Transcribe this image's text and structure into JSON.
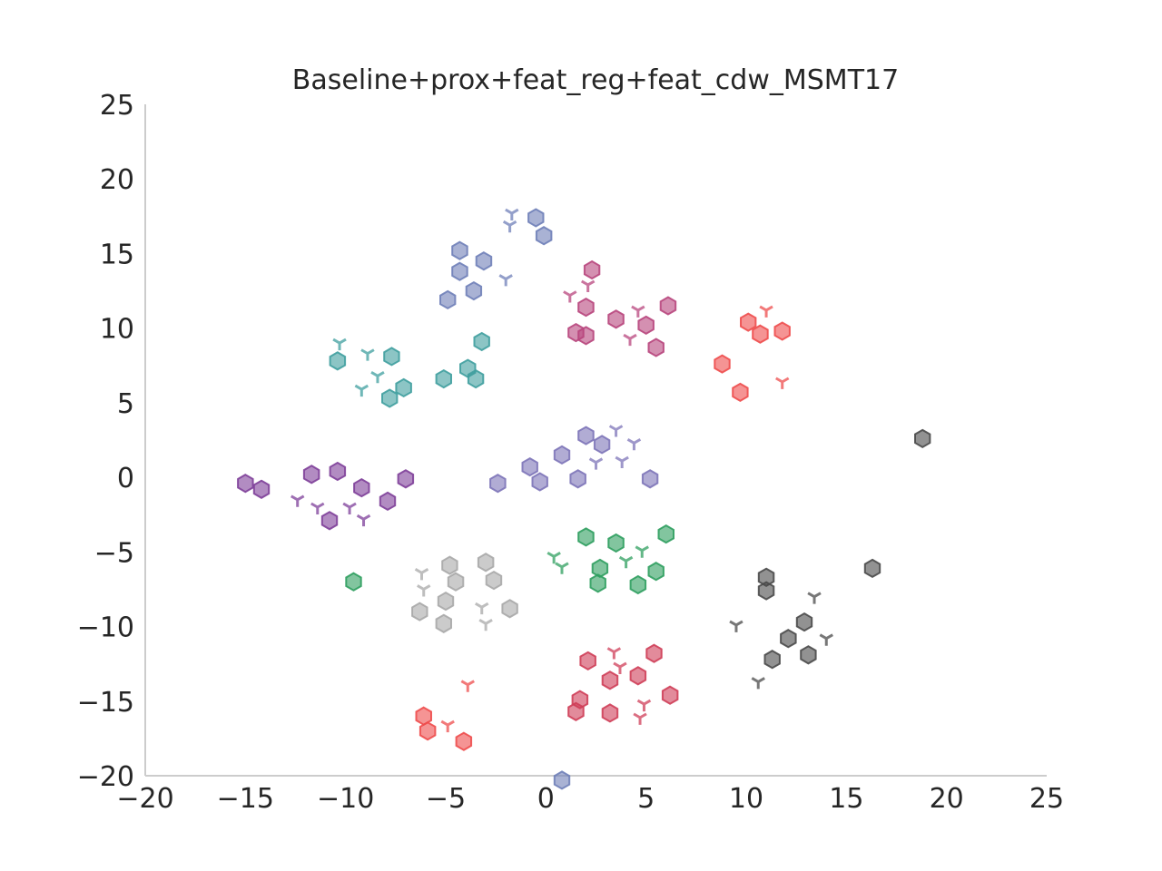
{
  "chart_data": {
    "type": "scatter",
    "title": "Baseline+prox+feat_reg+feat_cdw_MSMT17",
    "xlabel": "",
    "ylabel": "",
    "xlim": [
      -20,
      25
    ],
    "ylim": [
      -20,
      25
    ],
    "xticks": [
      -20,
      -15,
      -10,
      -5,
      0,
      5,
      10,
      15,
      20,
      25
    ],
    "yticks": [
      -20,
      -15,
      -10,
      -5,
      0,
      5,
      10,
      15,
      20,
      25
    ],
    "xtick_labels": [
      "−20",
      "−15",
      "−10",
      "−5",
      "0",
      "5",
      "10",
      "15",
      "20",
      "25"
    ],
    "ytick_labels": [
      "−20",
      "−15",
      "−10",
      "−5",
      "0",
      "5",
      "10",
      "15",
      "20",
      "25"
    ],
    "grid": false,
    "marker_legend": {
      "hexagon": "filled hexagon marker",
      "tri_down": "tri-down (Y) marker"
    },
    "clusters": [
      {
        "color": "#6f7fb8",
        "hex": [
          [
            -0.5,
            17.4
          ],
          [
            -0.1,
            16.2
          ],
          [
            -4.3,
            15.2
          ],
          [
            -3.1,
            14.5
          ],
          [
            -4.3,
            13.8
          ],
          [
            -3.6,
            12.5
          ],
          [
            -4.9,
            11.9
          ],
          [
            0.8,
            -20.3
          ]
        ],
        "tri": [
          [
            -1.7,
            17.7
          ],
          [
            -1.8,
            16.9
          ],
          [
            -2.0,
            13.3
          ]
        ]
      },
      {
        "color": "#b8467d",
        "hex": [
          [
            2.3,
            13.9
          ],
          [
            2.0,
            11.4
          ],
          [
            3.5,
            10.6
          ],
          [
            5.0,
            10.2
          ],
          [
            6.1,
            11.5
          ],
          [
            1.5,
            9.7
          ],
          [
            2.0,
            9.5
          ],
          [
            5.5,
            8.7
          ]
        ],
        "tri": [
          [
            1.2,
            12.2
          ],
          [
            2.1,
            12.9
          ],
          [
            4.6,
            11.2
          ],
          [
            4.2,
            9.3
          ]
        ]
      },
      {
        "color": "#ee4c4c",
        "hex": [
          [
            10.1,
            10.4
          ],
          [
            10.7,
            9.6
          ],
          [
            11.8,
            9.8
          ],
          [
            8.8,
            7.6
          ],
          [
            9.7,
            5.7
          ]
        ],
        "tri": [
          [
            11.0,
            11.2
          ],
          [
            11.8,
            6.4
          ]
        ]
      },
      {
        "color": "#3f9f9f",
        "hex": [
          [
            -10.4,
            7.8
          ],
          [
            -7.7,
            8.1
          ],
          [
            -3.2,
            9.1
          ],
          [
            -3.9,
            7.3
          ],
          [
            -5.1,
            6.6
          ],
          [
            -3.5,
            6.6
          ],
          [
            -7.1,
            6.0
          ],
          [
            -7.8,
            5.3
          ]
        ],
        "tri": [
          [
            -10.3,
            9.0
          ],
          [
            -8.9,
            8.3
          ],
          [
            -8.4,
            6.8
          ],
          [
            -9.2,
            5.9
          ]
        ]
      },
      {
        "color": "#7d74b8",
        "hex": [
          [
            2.0,
            2.8
          ],
          [
            2.8,
            2.2
          ],
          [
            0.8,
            1.5
          ],
          [
            -0.8,
            0.7
          ],
          [
            -0.3,
            -0.3
          ],
          [
            -2.4,
            -0.4
          ],
          [
            1.6,
            -0.1
          ],
          [
            5.2,
            -0.1
          ]
        ],
        "tri": [
          [
            3.5,
            3.2
          ],
          [
            4.4,
            2.3
          ],
          [
            2.5,
            1.0
          ],
          [
            3.8,
            1.1
          ]
        ]
      },
      {
        "color": "#7e3f99",
        "hex": [
          [
            -15.0,
            -0.4
          ],
          [
            -14.2,
            -0.8
          ],
          [
            -11.7,
            0.2
          ],
          [
            -10.4,
            0.4
          ],
          [
            -9.2,
            -0.7
          ],
          [
            -7.0,
            -0.1
          ],
          [
            -7.9,
            -1.6
          ],
          [
            -10.8,
            -2.9
          ]
        ],
        "tri": [
          [
            -12.4,
            -1.5
          ],
          [
            -11.4,
            -2.0
          ],
          [
            -9.8,
            -2.0
          ],
          [
            -9.1,
            -2.8
          ]
        ]
      },
      {
        "color": "#2f9f5f",
        "hex": [
          [
            2.0,
            -4.0
          ],
          [
            3.5,
            -4.4
          ],
          [
            6.0,
            -3.8
          ],
          [
            2.7,
            -6.1
          ],
          [
            5.5,
            -6.3
          ],
          [
            2.6,
            -7.1
          ],
          [
            4.6,
            -7.2
          ],
          [
            -9.6,
            -7.0
          ]
        ],
        "tri": [
          [
            0.4,
            -5.3
          ],
          [
            0.8,
            -6.0
          ],
          [
            4.8,
            -4.9
          ],
          [
            4.0,
            -5.6
          ]
        ]
      },
      {
        "color": "#a8a8a8",
        "hex": [
          [
            -4.8,
            -5.9
          ],
          [
            -3.0,
            -5.7
          ],
          [
            -4.5,
            -7.0
          ],
          [
            -2.6,
            -6.9
          ],
          [
            -5.0,
            -8.3
          ],
          [
            -1.8,
            -8.8
          ],
          [
            -6.3,
            -9.0
          ],
          [
            -5.1,
            -9.8
          ]
        ],
        "tri": [
          [
            -6.2,
            -6.4
          ],
          [
            -6.1,
            -7.5
          ],
          [
            -3.2,
            -8.7
          ],
          [
            -3.0,
            -9.8
          ]
        ]
      },
      {
        "color": "#cf3e58",
        "hex": [
          [
            2.1,
            -12.3
          ],
          [
            5.4,
            -11.8
          ],
          [
            3.2,
            -13.6
          ],
          [
            4.6,
            -13.3
          ],
          [
            6.2,
            -14.6
          ],
          [
            1.7,
            -14.9
          ],
          [
            1.5,
            -15.7
          ],
          [
            3.2,
            -15.8
          ]
        ],
        "tri": [
          [
            3.4,
            -11.7
          ],
          [
            3.7,
            -12.7
          ],
          [
            4.9,
            -15.2
          ],
          [
            4.7,
            -16.1
          ]
        ]
      },
      {
        "color": "#ee4c4c",
        "hex": [
          [
            -6.1,
            -16.0
          ],
          [
            -5.9,
            -17.0
          ],
          [
            -4.1,
            -17.7
          ]
        ],
        "tri": [
          [
            -3.9,
            -13.9
          ],
          [
            -4.9,
            -16.6
          ]
        ]
      },
      {
        "color": "#4a4a4a",
        "hex": [
          [
            18.8,
            2.6
          ],
          [
            16.3,
            -6.1
          ],
          [
            11.0,
            -6.7
          ],
          [
            11.0,
            -7.6
          ],
          [
            12.9,
            -9.7
          ],
          [
            12.1,
            -10.8
          ],
          [
            11.3,
            -12.2
          ],
          [
            13.1,
            -11.9
          ]
        ],
        "tri": [
          [
            13.4,
            -8.0
          ],
          [
            9.5,
            -9.9
          ],
          [
            14.0,
            -10.8
          ],
          [
            10.6,
            -13.7
          ]
        ]
      }
    ]
  }
}
